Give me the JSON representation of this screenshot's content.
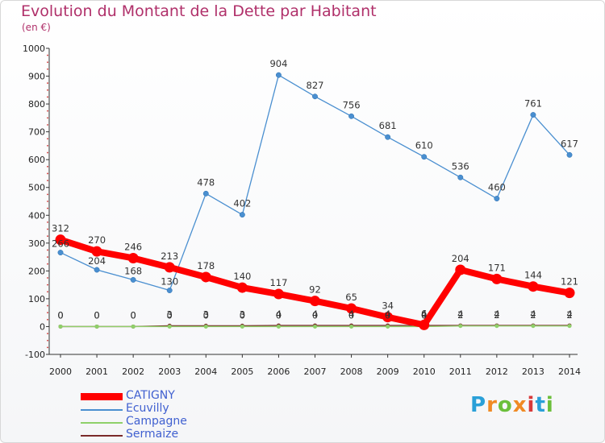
{
  "header": {
    "title": "Evolution du Montant de la Dette par Habitant",
    "unit": "(en €)"
  },
  "logo": {
    "text": "Proxiti",
    "colors": [
      "#2aa0d8",
      "#f08a24",
      "#6bbf3a",
      "#f08a24",
      "#d83a3a",
      "#2aa0d8",
      "#6bbf3a"
    ]
  },
  "chart_data": {
    "type": "line",
    "title": "Evolution du Montant de la Dette par Habitant",
    "ylabel": "(en €)",
    "x": [
      "2000",
      "2001",
      "2002",
      "2003",
      "2004",
      "2005",
      "2006",
      "2007",
      "2008",
      "2009",
      "2010",
      "2011",
      "2012",
      "2013",
      "2014"
    ],
    "ylim": [
      -100,
      1000
    ],
    "yticks": [
      -100,
      0,
      100,
      200,
      300,
      400,
      500,
      600,
      700,
      800,
      900,
      1000
    ],
    "grid": false,
    "legend_position": "bottom-left",
    "series": [
      {
        "name": "CATIGNY",
        "color": "#ff0000",
        "values": [
          312,
          270,
          246,
          213,
          178,
          140,
          117,
          92,
          65,
          34,
          6,
          204,
          171,
          144,
          121
        ],
        "labels": [
          "312",
          "270",
          "246",
          "213",
          "178",
          "140",
          "117",
          "92",
          "65",
          "34",
          "6",
          "204",
          "171",
          "144",
          "121"
        ]
      },
      {
        "name": "Ecuvilly",
        "color": "#4a8fd0",
        "values": [
          266,
          204,
          168,
          130,
          478,
          402,
          904,
          827,
          756,
          681,
          610,
          536,
          460,
          761,
          617
        ],
        "labels": [
          "266",
          "204",
          "168",
          "130",
          "478",
          "402",
          "904",
          "827",
          "756",
          "681",
          "610",
          "536",
          "460",
          "761",
          "617"
        ]
      },
      {
        "name": "Campagne",
        "color": "#8fd06a",
        "values": [
          0,
          0,
          0,
          0,
          0,
          0,
          0,
          0,
          0,
          0,
          0,
          2,
          2,
          2,
          2
        ],
        "labels": [
          "0",
          "0",
          "0",
          "0",
          "0",
          "0",
          "0",
          "0",
          "0",
          "0",
          "0",
          "2",
          "2",
          "2",
          "2"
        ]
      },
      {
        "name": "Sermaize",
        "color": "#7a2a2a",
        "values": [
          0,
          0,
          0,
          3,
          3,
          3,
          4,
          4,
          4,
          4,
          4,
          4,
          4,
          4,
          4
        ],
        "labels": [
          "0",
          "0",
          "0",
          "3",
          "3",
          "3",
          "4",
          "4",
          "4",
          "4",
          "4",
          "4",
          "4",
          "4",
          "4"
        ]
      }
    ]
  }
}
